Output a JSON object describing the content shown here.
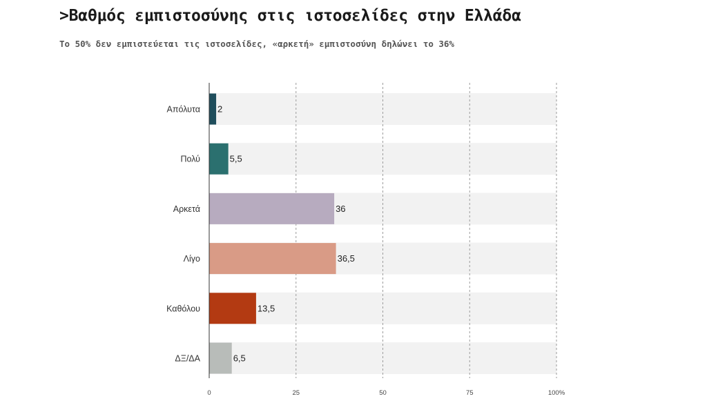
{
  "header": {
    "title": ">Βαθμός εμπιστοσύνης στις ιστοσελίδες στην Ελλάδα",
    "subtitle": "Το 50% δεν εμπιστεύεται τις ιστοσελίδες, «αρκετή» εμπιστοσύνη δηλώνει το 36%"
  },
  "chart_data": {
    "type": "bar",
    "orientation": "horizontal",
    "title": ">Βαθμός εμπιστοσύνης στις ιστοσελίδες στην Ελλάδα",
    "subtitle": "Το 50% δεν εμπιστεύεται τις ιστοσελίδες, «αρκετή» εμπιστοσύνη δηλώνει το 36%",
    "categories": [
      "Απόλυτα",
      "Πολύ",
      "Αρκετά",
      "Λίγο",
      "Καθόλου",
      "ΔΞ/ΔΑ"
    ],
    "values": [
      2,
      5.5,
      36,
      36.5,
      13.5,
      6.5
    ],
    "value_labels": [
      "2",
      "5,5",
      "36",
      "36,5",
      "13,5",
      "6,5"
    ],
    "colors": [
      "#1f4e5c",
      "#2b706f",
      "#b7abbf",
      "#d99b86",
      "#b33a12",
      "#b8bcb9"
    ],
    "track_color": "#f2f2f2",
    "xlim": [
      0,
      100
    ],
    "ticks": [
      0,
      25,
      50,
      75,
      100
    ],
    "tick_labels": [
      "0",
      "25",
      "50",
      "75",
      "100%"
    ],
    "grid": true,
    "xlabel": "",
    "ylabel": ""
  }
}
